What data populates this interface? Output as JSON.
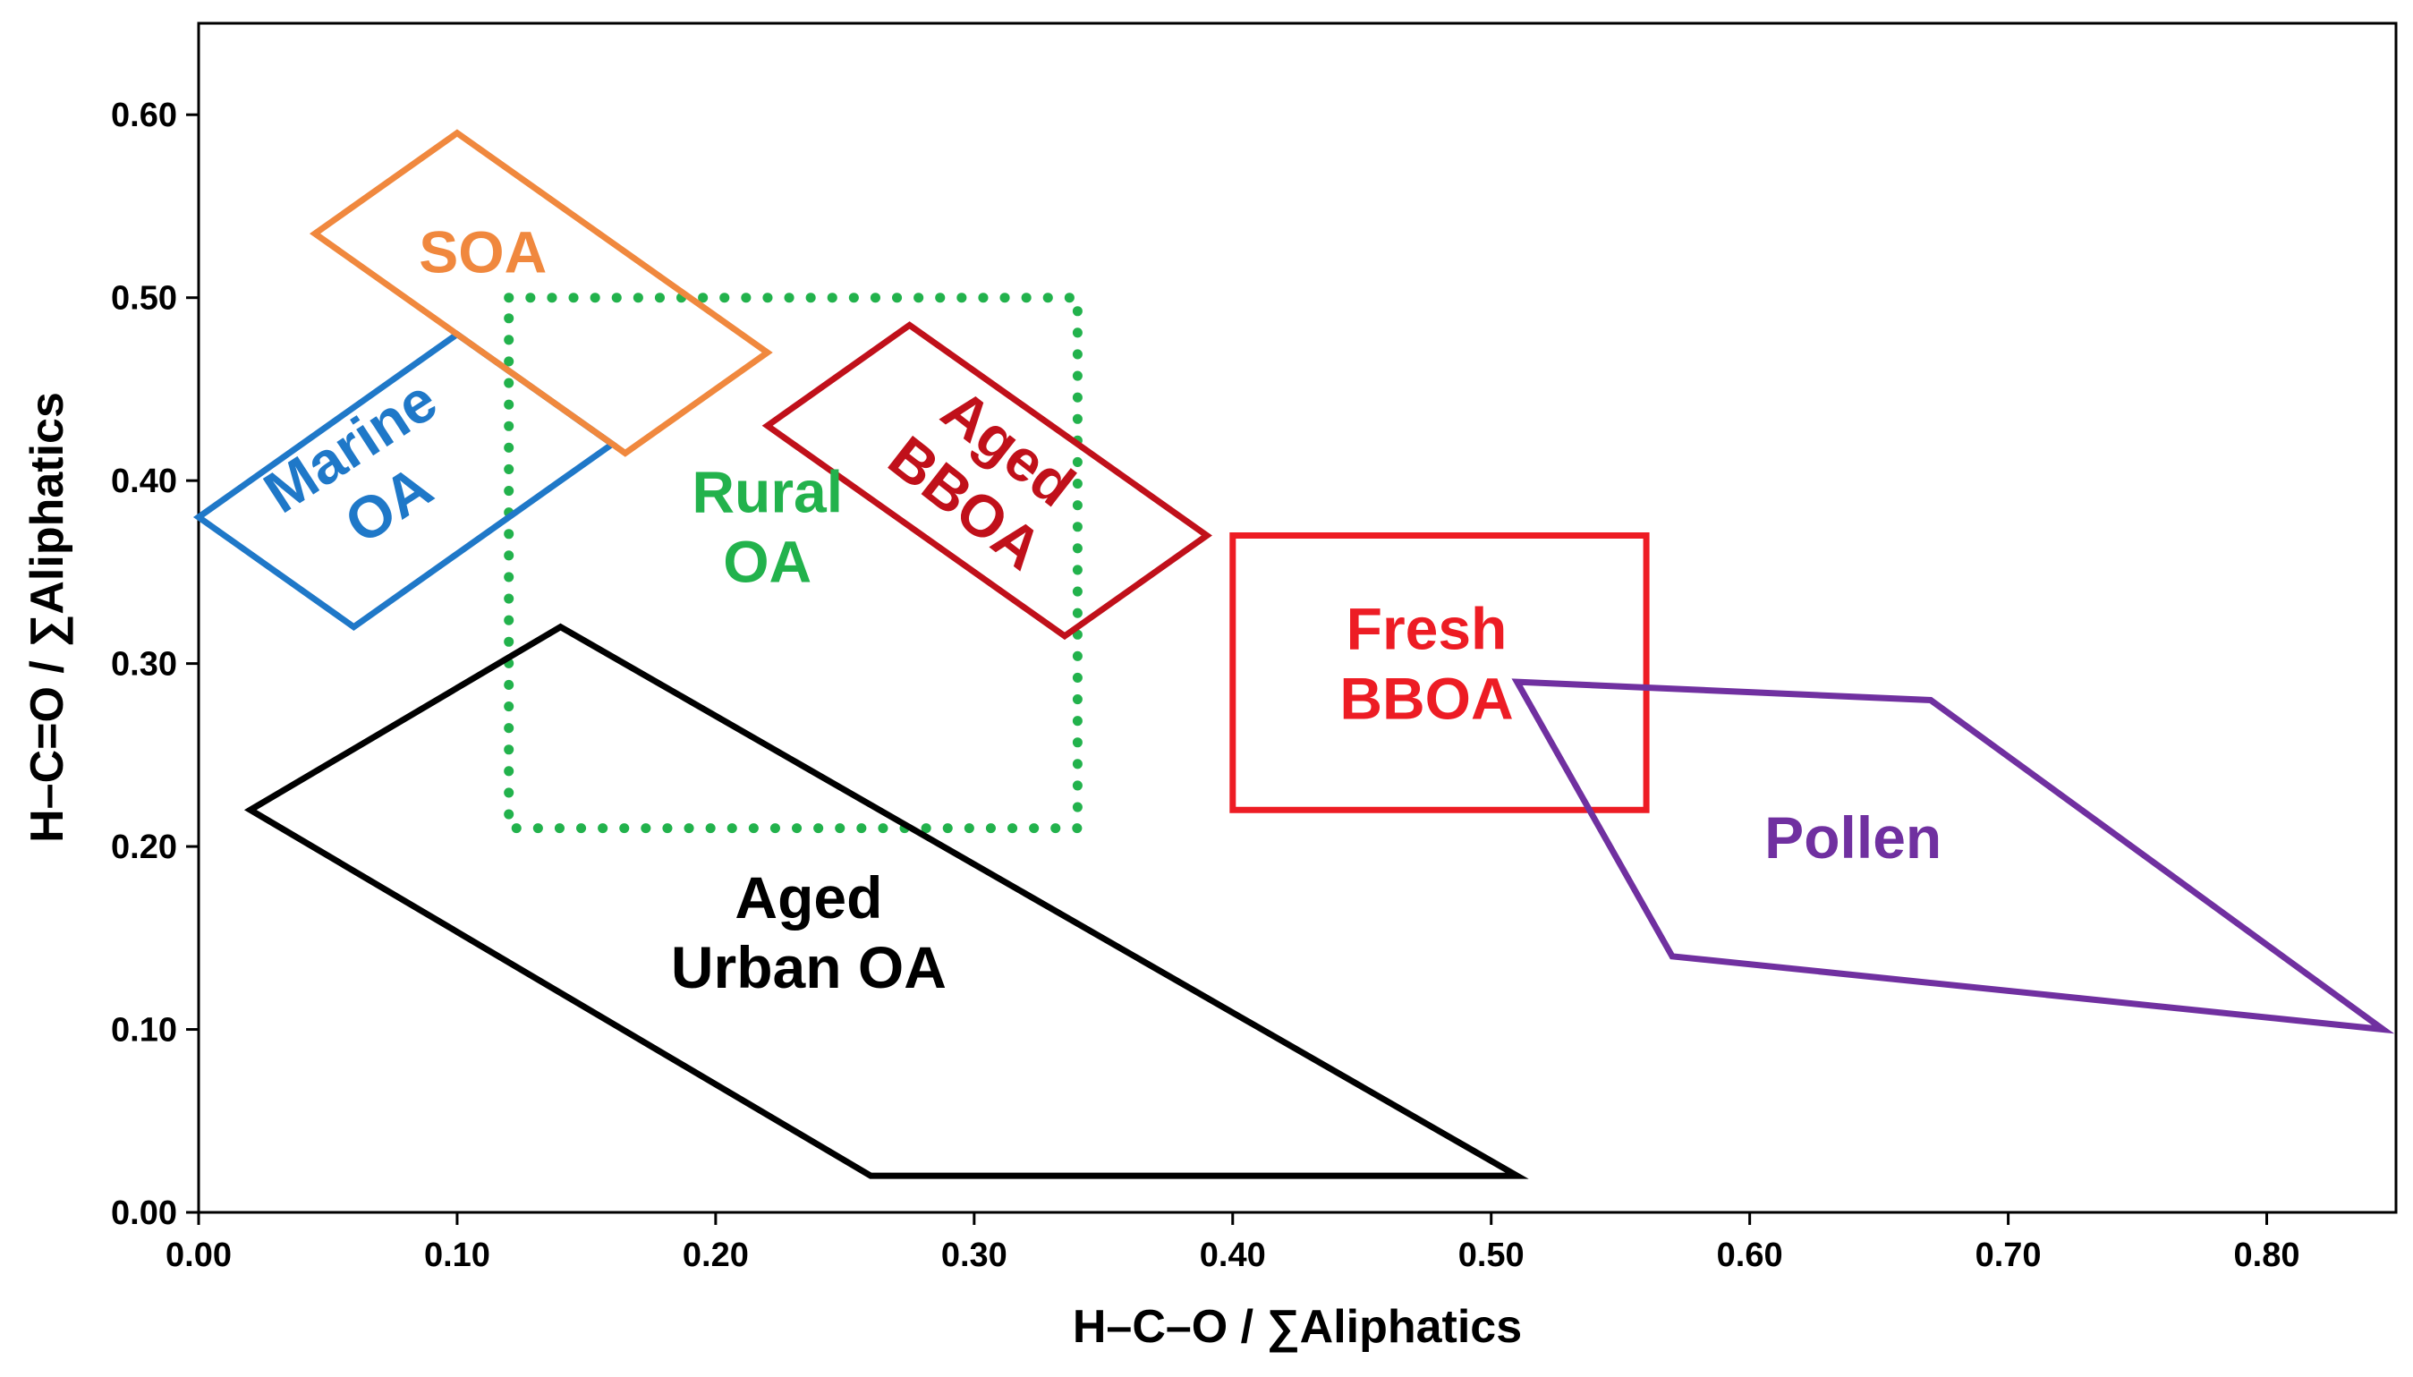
{
  "chart_data": {
    "type": "scatter",
    "title": "",
    "xlabel": "H–C–O / ∑Aliphatics",
    "ylabel": "H–C=O / ∑Aliphatics",
    "xlim": [
      0,
      0.85
    ],
    "ylim": [
      0,
      0.65
    ],
    "grid": false,
    "x_ticks": [
      0,
      0.1,
      0.2,
      0.3,
      0.4,
      0.5,
      0.6,
      0.7,
      0.8
    ],
    "x_tick_labels": [
      "0.00",
      "0.10",
      "0.20",
      "0.30",
      "0.40",
      "0.50",
      "0.60",
      "0.70",
      "0.80"
    ],
    "y_ticks": [
      0,
      0.1,
      0.2,
      0.3,
      0.4,
      0.5,
      0.6
    ],
    "y_tick_labels": [
      "0.00",
      "0.10",
      "0.20",
      "0.30",
      "0.40",
      "0.50",
      "0.60"
    ],
    "regions": [
      {
        "name": "Rural OA",
        "label_lines": [
          "Rural",
          "OA"
        ],
        "color": "#22b24c",
        "dashed": true,
        "polygon": [
          [
            0.12,
            0.5
          ],
          [
            0.34,
            0.5
          ],
          [
            0.34,
            0.21
          ],
          [
            0.12,
            0.21
          ]
        ],
        "label_pos": [
          0.22,
          0.375
        ],
        "label_rotation": 0
      },
      {
        "name": "Marine OA",
        "label_lines": [
          "Marine",
          "OA"
        ],
        "color": "#1f78c8",
        "dashed": false,
        "polygon": [
          [
            0.0,
            0.38
          ],
          [
            0.1,
            0.48
          ],
          [
            0.16,
            0.42
          ],
          [
            0.06,
            0.32
          ]
        ],
        "label_pos": [
          0.066,
          0.403
        ],
        "label_rotation": -33
      },
      {
        "name": "SOA",
        "label_lines": [
          "SOA"
        ],
        "color": "#f0883e",
        "dashed": false,
        "polygon": [
          [
            0.045,
            0.535
          ],
          [
            0.1,
            0.59
          ],
          [
            0.22,
            0.47
          ],
          [
            0.165,
            0.415
          ]
        ],
        "label_pos": [
          0.11,
          0.525
        ],
        "label_rotation": 0
      },
      {
        "name": "Aged BBOA",
        "label_lines": [
          "Aged",
          "BBOA"
        ],
        "color": "#c0101a",
        "dashed": false,
        "polygon": [
          [
            0.22,
            0.43
          ],
          [
            0.275,
            0.485
          ],
          [
            0.39,
            0.37
          ],
          [
            0.335,
            0.315
          ]
        ],
        "label_pos": [
          0.305,
          0.403
        ],
        "label_rotation": 38
      },
      {
        "name": "Fresh BBOA",
        "label_lines": [
          "Fresh",
          "BBOA"
        ],
        "color": "#ed1c24",
        "dashed": false,
        "polygon": [
          [
            0.4,
            0.37
          ],
          [
            0.56,
            0.37
          ],
          [
            0.56,
            0.22
          ],
          [
            0.4,
            0.22
          ]
        ],
        "label_pos": [
          0.475,
          0.3
        ],
        "label_rotation": 0
      },
      {
        "name": "Pollen",
        "label_lines": [
          "Pollen"
        ],
        "color": "#7030a0",
        "dashed": false,
        "polygon": [
          [
            0.51,
            0.29
          ],
          [
            0.67,
            0.28
          ],
          [
            0.845,
            0.1
          ],
          [
            0.57,
            0.14
          ]
        ],
        "label_pos": [
          0.64,
          0.205
        ],
        "label_rotation": 0
      },
      {
        "name": "Aged Urban OA",
        "label_lines": [
          "Aged",
          "Urban OA"
        ],
        "color": "#000000",
        "dashed": false,
        "polygon": [
          [
            0.02,
            0.22
          ],
          [
            0.14,
            0.32
          ],
          [
            0.51,
            0.02
          ],
          [
            0.26,
            0.02
          ]
        ],
        "label_pos": [
          0.236,
          0.153
        ],
        "label_rotation": 0
      }
    ]
  }
}
